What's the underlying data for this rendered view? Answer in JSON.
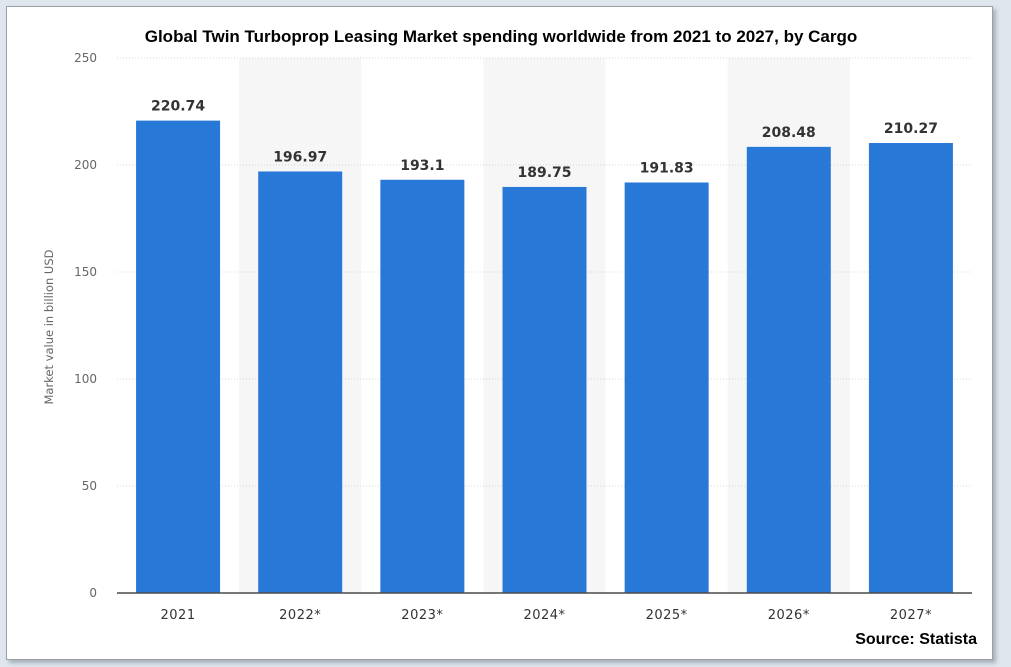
{
  "chart_data": {
    "type": "bar",
    "title": "Global Twin Turboprop Leasing Market spending worldwide from 2021 to 2027, by Cargo",
    "ylabel": "Market value in billion USD",
    "xlabel": "",
    "categories": [
      "2021",
      "2022*",
      "2023*",
      "2024*",
      "2025*",
      "2026*",
      "2027*"
    ],
    "values": [
      220.74,
      196.97,
      193.1,
      189.75,
      191.83,
      208.48,
      210.27
    ],
    "value_labels": [
      "220.74",
      "196.97",
      "193.1",
      "189.75",
      "191.83",
      "208.48",
      "210.27"
    ],
    "ylim": [
      0,
      250
    ],
    "yticks": [
      0,
      50,
      100,
      150,
      200,
      250
    ],
    "grid": true,
    "legend": "none",
    "bar_color": "#2878d8",
    "source": "Source: Statista"
  }
}
